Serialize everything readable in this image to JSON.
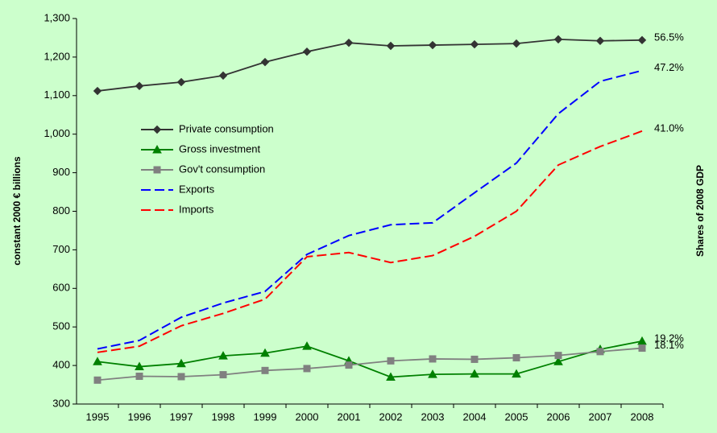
{
  "chart_data": {
    "type": "line",
    "y_label": "constant 2000 € billions",
    "y2_label": "Shares of 2008 GDP",
    "categories": [
      "1995",
      "1996",
      "1997",
      "1998",
      "1999",
      "2000",
      "2001",
      "2002",
      "2003",
      "2004",
      "2005",
      "2006",
      "2007",
      "2008"
    ],
    "series": [
      {
        "name": "Private consumption",
        "color": "#333333",
        "marker": "diamond",
        "dash": "solid",
        "end_label": "56.5%",
        "values": [
          1112,
          1125,
          1135,
          1152,
          1187,
          1214,
          1237,
          1229,
          1231,
          1233,
          1235,
          1246,
          1242,
          1244
        ]
      },
      {
        "name": "Gross investment",
        "color": "#008000",
        "marker": "triangle",
        "dash": "solid",
        "end_label": "19.2%",
        "values": [
          410,
          397,
          405,
          425,
          432,
          450,
          412,
          370,
          377,
          378,
          378,
          410,
          442,
          463
        ]
      },
      {
        "name": "Gov't consumption",
        "color": "#808080",
        "marker": "square",
        "dash": "solid",
        "end_label": "18.1%",
        "values": [
          362,
          372,
          371,
          376,
          387,
          392,
          401,
          412,
          417,
          416,
          420,
          426,
          436,
          445
        ]
      },
      {
        "name": "Exports",
        "color": "#0000ff",
        "marker": "none",
        "dash": "dashed",
        "end_label": "47.2%",
        "values": [
          443,
          465,
          525,
          562,
          592,
          688,
          737,
          765,
          770,
          848,
          925,
          1053,
          1137,
          1165
        ]
      },
      {
        "name": "Imports",
        "color": "#ff0000",
        "marker": "none",
        "dash": "dashed",
        "end_label": "41.0%",
        "values": [
          434,
          450,
          503,
          535,
          572,
          682,
          693,
          667,
          685,
          735,
          800,
          920,
          968,
          1008
        ]
      }
    ],
    "ylim": [
      300,
      1300
    ],
    "yticks": [
      {
        "value": 300,
        "label": "300"
      },
      {
        "value": 400,
        "label": "400"
      },
      {
        "value": 500,
        "label": "500"
      },
      {
        "value": 600,
        "label": "600"
      },
      {
        "value": 700,
        "label": "700"
      },
      {
        "value": 800,
        "label": "800"
      },
      {
        "value": 900,
        "label": "900"
      },
      {
        "value": 1000,
        "label": "1,000"
      },
      {
        "value": 1100,
        "label": "1,100"
      },
      {
        "value": 1200,
        "label": "1,200"
      },
      {
        "value": 1300,
        "label": "1,300"
      }
    ],
    "grid": false,
    "legend": "upper left"
  }
}
